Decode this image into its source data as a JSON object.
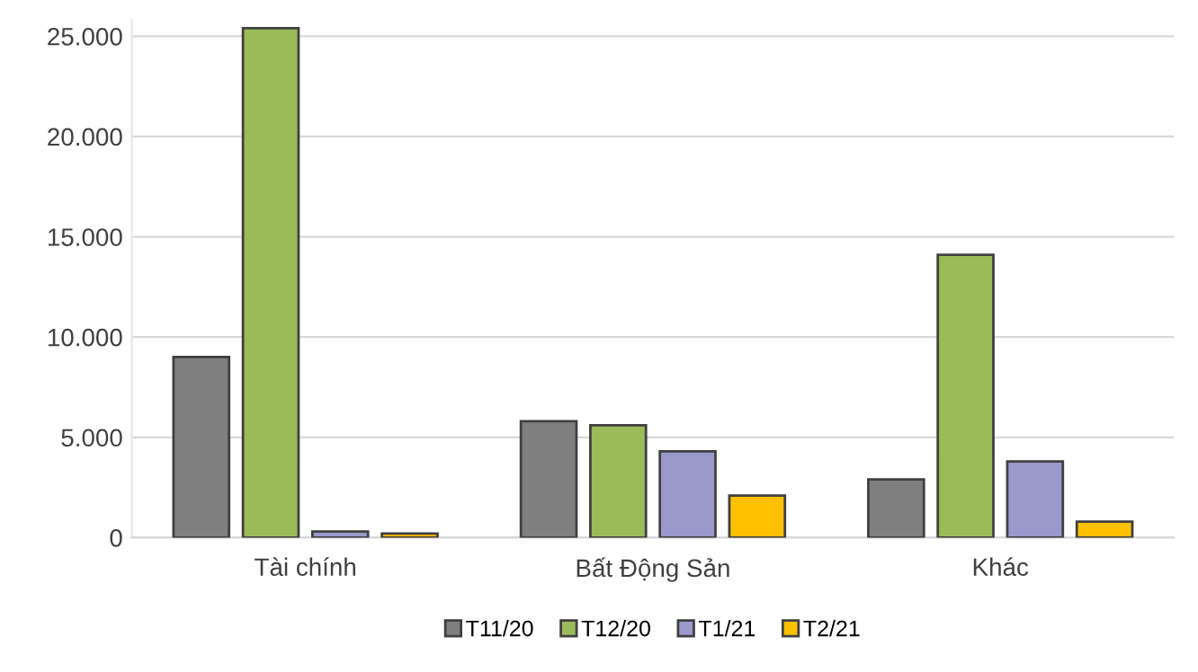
{
  "chart_data": {
    "type": "bar",
    "categories": [
      "Tài chính",
      "Bất Động Sản",
      "Khác"
    ],
    "series": [
      {
        "name": "T11/20",
        "color": "#7f7f7f",
        "values": [
          9000,
          5800,
          2900
        ]
      },
      {
        "name": "T12/20",
        "color": "#9bbb59",
        "values": [
          25400,
          5600,
          14100
        ]
      },
      {
        "name": "T1/21",
        "color": "#9999cc",
        "values": [
          300,
          4300,
          3800
        ]
      },
      {
        "name": "T2/21",
        "color": "#ffc000",
        "values": [
          200,
          2100,
          800
        ]
      }
    ],
    "ylim": [
      0,
      25800
    ],
    "yticks": [
      {
        "value": 0,
        "label": "0"
      },
      {
        "value": 5000,
        "label": "5.000"
      },
      {
        "value": 10000,
        "label": "10.000"
      },
      {
        "value": 15000,
        "label": "15.000"
      },
      {
        "value": 20000,
        "label": "20.000"
      },
      {
        "value": 25000,
        "label": "25.000"
      }
    ],
    "grid": "y",
    "legend": "bottom"
  }
}
